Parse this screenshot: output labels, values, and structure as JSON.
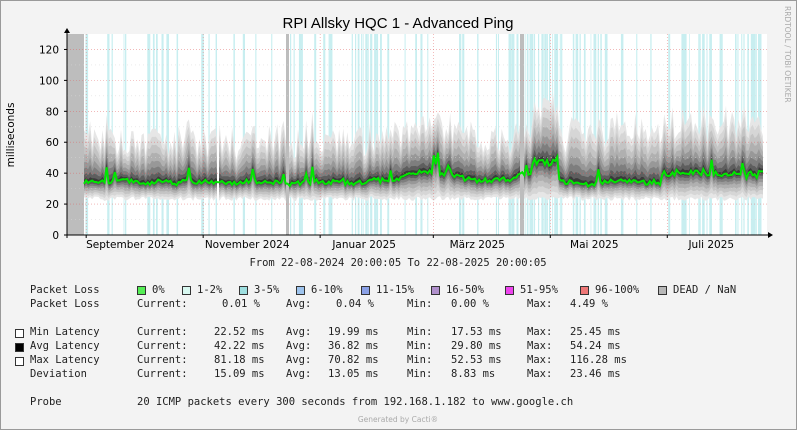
{
  "chart_data": {
    "type": "area",
    "title": "RPI Allsky HQC 1 - Advanced Ping",
    "ylabel": "milliseconds",
    "ylim": [
      0,
      130
    ],
    "yticks": [
      0,
      20,
      40,
      60,
      80,
      100,
      120
    ],
    "x_tick_labels": [
      "September 2024",
      "November 2024",
      "Januar 2025",
      "März 2025",
      "Mai 2025",
      "Juli 2025"
    ],
    "x_tick_dates": [
      "2024-09-01",
      "2024-11-01",
      "2025-01-01",
      "2025-03-01",
      "2025-05-01",
      "2025-07-01"
    ],
    "x_range": [
      "2024-08-22",
      "2025-08-22"
    ],
    "grid": true,
    "watermark": "RRDTOOL / TOBI OETIKER",
    "subtitle": "From 22-08-2024 20:00:05 To 22-08-2025 20:00:05",
    "series": [
      {
        "name": "Min Latency",
        "role": "min",
        "current": 22.52,
        "avg": 19.99,
        "min": 17.53,
        "max": 25.45
      },
      {
        "name": "Avg Latency",
        "role": "avg",
        "current": 42.22,
        "avg": 36.82,
        "min": 29.8,
        "max": 54.24,
        "typical": 34
      },
      {
        "name": "Max Latency",
        "role": "max",
        "current": 81.18,
        "avg": 70.82,
        "min": 52.53,
        "max": 116.28
      },
      {
        "name": "Deviation",
        "role": "deviation",
        "current": 15.09,
        "avg": 13.05,
        "min": 8.83,
        "max": 23.46
      }
    ]
  },
  "colors": {
    "avg_line": "#00e600",
    "loss_band": "#c8eef0",
    "dead_band": "#bdbdbd",
    "axis": "#000000",
    "grid_major": "#e06060"
  },
  "legend": {
    "packet_loss_label": "Packet Loss",
    "loss_buckets": [
      {
        "label": "0%",
        "color": "#55ee55"
      },
      {
        "label": "1-2%",
        "color": "#d8f8f0"
      },
      {
        "label": "3-5%",
        "color": "#9edfe0"
      },
      {
        "label": "6-10%",
        "color": "#9ec4ee"
      },
      {
        "label": "11-15%",
        "color": "#8aa0e6"
      },
      {
        "label": "16-50%",
        "color": "#b090cc"
      },
      {
        "label": "51-95%",
        "color": "#ee44ee"
      },
      {
        "label": "96-100%",
        "color": "#ee7777"
      },
      {
        "label": "DEAD / NaN",
        "color": "#b8b8b8"
      }
    ],
    "loss_stats": {
      "label": "Packet Loss",
      "current": "0.01 %",
      "avg": "0.04 %",
      "min": "0.00 %",
      "max": "4.49 %"
    },
    "stat_labels": {
      "current": "Current:",
      "avg": "Avg:",
      "min": "Min:",
      "max": "Max:"
    },
    "rows": [
      {
        "label": "Min Latency",
        "box": "#ffffff",
        "current": "22.52 ms",
        "avg": "19.99 ms",
        "min": "17.53 ms",
        "max": "25.45 ms"
      },
      {
        "label": "Avg Latency",
        "box": "#000000",
        "current": "42.22 ms",
        "avg": "36.82 ms",
        "min": "29.80 ms",
        "max": "54.24 ms"
      },
      {
        "label": "Max Latency",
        "box": "#ffffff",
        "current": "81.18 ms",
        "avg": "70.82 ms",
        "min": "52.53 ms",
        "max": "116.28 ms"
      },
      {
        "label": "Deviation",
        "box": null,
        "current": "15.09 ms",
        "avg": "13.05 ms",
        "min": "8.83 ms",
        "max": "23.46 ms"
      }
    ],
    "probe_label": "Probe",
    "probe_text": "20 ICMP packets every 300 seconds from 192.168.1.182 to www.google.ch"
  },
  "footer": "Generated by Cacti®"
}
